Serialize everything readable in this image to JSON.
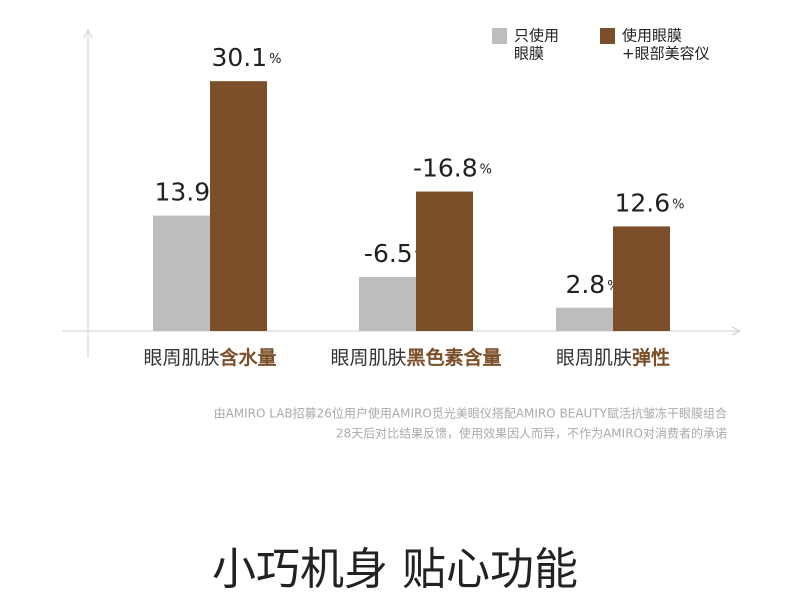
{
  "chart_data": {
    "type": "bar",
    "categories": [
      [
        "眼周肌肤",
        "含水量"
      ],
      [
        "眼周肌肤",
        "黑色素含量"
      ],
      [
        "眼周肌肤",
        "弹性"
      ]
    ],
    "unit": "%",
    "series": [
      {
        "name": [
          "只使用",
          "眼膜"
        ],
        "color": "#bdbdbd",
        "values": [
          13.9,
          -6.5,
          2.8
        ]
      },
      {
        "name": [
          "使用眼膜",
          "+眼部美容仪"
        ],
        "color": "#7b4f2a",
        "values": [
          30.1,
          -16.8,
          12.6
        ]
      }
    ],
    "legend": "top-right",
    "notes": [
      "由AMIRO LAB招募26位用户使用AMIRO觅光美眼仪搭配AMIRO BEAUTY赋活抗皱冻干眼膜组合",
      "28天后对比结果反馈，使用效果因人而异，不作为AMIRO对消费者的承诺"
    ],
    "heading": "小巧机身 贴心功能"
  }
}
